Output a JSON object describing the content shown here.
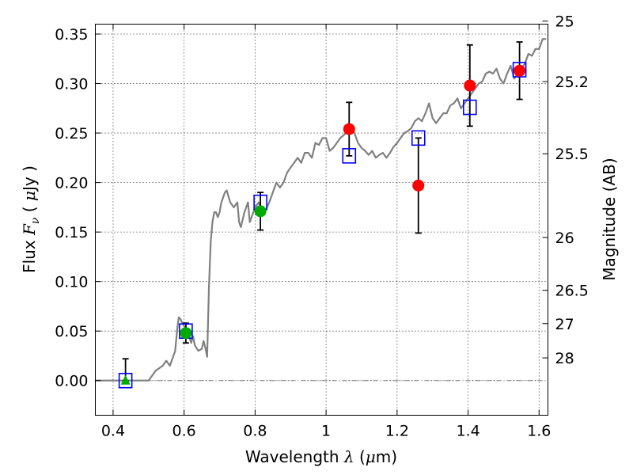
{
  "chart_data": {
    "type": "scatter",
    "xlabel": {
      "text": "Wavelength",
      "symbol": "λ",
      "unit_open": " (",
      "unit_mu": "μ",
      "unit_rest": "m)"
    },
    "ylabel": {
      "text": "Flux",
      "symbol": "F",
      "subscript": "ν",
      "unit_open": "( ",
      "unit_mu": "μ",
      "unit_rest": "Jy )"
    },
    "y2label": "Magnitude (AB)",
    "xlim": [
      0.35,
      1.625
    ],
    "ylim": [
      -0.035,
      0.36
    ],
    "grid": true,
    "x_ticks": [
      {
        "value": 0.4,
        "label": "0.4"
      },
      {
        "value": 0.6,
        "label": "0.6"
      },
      {
        "value": 0.8,
        "label": "0.8"
      },
      {
        "value": 1.0,
        "label": "1"
      },
      {
        "value": 1.2,
        "label": "1.2"
      },
      {
        "value": 1.4,
        "label": "1.4"
      },
      {
        "value": 1.6,
        "label": "1.6"
      }
    ],
    "y_ticks": [
      {
        "value": 0.0,
        "label": "0.00"
      },
      {
        "value": 0.05,
        "label": "0.05"
      },
      {
        "value": 0.1,
        "label": "0.10"
      },
      {
        "value": 0.15,
        "label": "0.15"
      },
      {
        "value": 0.2,
        "label": "0.20"
      },
      {
        "value": 0.25,
        "label": "0.25"
      },
      {
        "value": 0.3,
        "label": "0.30"
      },
      {
        "value": 0.35,
        "label": "0.35"
      }
    ],
    "mag_ticks": [
      {
        "label": "25",
        "mag": 25.0
      },
      {
        "label": "25.2",
        "mag": 25.2
      },
      {
        "label": "25.5",
        "mag": 25.5
      },
      {
        "label": "26",
        "mag": 26.0
      },
      {
        "label": "26.5",
        "mag": 26.5
      },
      {
        "label": "27",
        "mag": 27.0
      },
      {
        "label": "28",
        "mag": 28.0
      }
    ],
    "colors": {
      "model": "#808080",
      "model_photometry": "#0000ff",
      "detection_hst": "#ff0000",
      "detection_optical": "#00aa00",
      "errorbar": "#000000",
      "zero_line": "#808080"
    },
    "series": [
      {
        "role": "model_spectrum",
        "style": "line",
        "x": [
          0.35,
          0.4,
          0.45,
          0.5,
          0.52,
          0.54,
          0.55,
          0.56,
          0.57,
          0.575,
          0.58,
          0.585,
          0.59,
          0.595,
          0.6,
          0.61,
          0.62,
          0.625,
          0.63,
          0.64,
          0.65,
          0.655,
          0.66,
          0.665,
          0.67,
          0.675,
          0.68,
          0.685,
          0.69,
          0.695,
          0.7,
          0.705,
          0.71,
          0.715,
          0.72,
          0.73,
          0.74,
          0.75,
          0.755,
          0.76,
          0.77,
          0.78,
          0.785,
          0.79,
          0.8,
          0.81,
          0.82,
          0.83,
          0.84,
          0.85,
          0.86,
          0.87,
          0.88,
          0.89,
          0.9,
          0.91,
          0.92,
          0.93,
          0.94,
          0.95,
          0.96,
          0.97,
          0.98,
          0.99,
          1.0,
          1.01,
          1.02,
          1.03,
          1.04,
          1.05,
          1.06,
          1.07,
          1.08,
          1.09,
          1.1,
          1.11,
          1.12,
          1.13,
          1.14,
          1.15,
          1.16,
          1.17,
          1.18,
          1.19,
          1.2,
          1.21,
          1.22,
          1.23,
          1.24,
          1.25,
          1.26,
          1.27,
          1.28,
          1.29,
          1.3,
          1.31,
          1.32,
          1.33,
          1.34,
          1.35,
          1.36,
          1.37,
          1.38,
          1.39,
          1.4,
          1.41,
          1.42,
          1.43,
          1.44,
          1.45,
          1.46,
          1.47,
          1.48,
          1.49,
          1.5,
          1.51,
          1.52,
          1.53,
          1.54,
          1.55,
          1.56,
          1.57,
          1.58,
          1.59,
          1.6,
          1.61,
          1.62
        ],
        "y": [
          0.0,
          0.0,
          0.0,
          0.0,
          0.01,
          0.015,
          0.02,
          0.015,
          0.025,
          0.03,
          0.05,
          0.064,
          0.062,
          0.058,
          0.055,
          0.05,
          0.038,
          0.045,
          0.036,
          0.03,
          0.032,
          0.04,
          0.033,
          0.024,
          0.095,
          0.14,
          0.16,
          0.17,
          0.17,
          0.165,
          0.17,
          0.18,
          0.185,
          0.19,
          0.192,
          0.18,
          0.175,
          0.18,
          0.16,
          0.155,
          0.17,
          0.18,
          0.16,
          0.165,
          0.175,
          0.18,
          0.17,
          0.172,
          0.18,
          0.19,
          0.2,
          0.195,
          0.2,
          0.21,
          0.215,
          0.22,
          0.225,
          0.22,
          0.23,
          0.23,
          0.225,
          0.24,
          0.238,
          0.245,
          0.245,
          0.232,
          0.235,
          0.24,
          0.245,
          0.248,
          0.252,
          0.255,
          0.25,
          0.24,
          0.235,
          0.232,
          0.228,
          0.232,
          0.225,
          0.228,
          0.23,
          0.225,
          0.23,
          0.236,
          0.24,
          0.245,
          0.25,
          0.252,
          0.255,
          0.262,
          0.265,
          0.262,
          0.27,
          0.28,
          0.265,
          0.26,
          0.265,
          0.27,
          0.27,
          0.278,
          0.28,
          0.285,
          0.275,
          0.28,
          0.285,
          0.29,
          0.295,
          0.3,
          0.302,
          0.31,
          0.312,
          0.31,
          0.315,
          0.305,
          0.3,
          0.31,
          0.318,
          0.305,
          0.31,
          0.315,
          0.32,
          0.33,
          0.328,
          0.335,
          0.335,
          0.345,
          0.345
        ]
      },
      {
        "role": "model_photometry",
        "style": "open_square",
        "x": [
          0.435,
          0.605,
          0.815,
          1.065,
          1.26,
          1.405,
          1.545
        ],
        "y": [
          0.0,
          0.05,
          0.18,
          0.227,
          0.245,
          0.276,
          0.314
        ]
      },
      {
        "role": "detection_hst",
        "style": "filled_circle",
        "x": [
          1.065,
          1.26,
          1.405,
          1.545
        ],
        "y": [
          0.254,
          0.197,
          0.298,
          0.313
        ],
        "yerr": [
          0.027,
          0.048,
          0.041,
          0.029
        ]
      },
      {
        "role": "detection_optical",
        "style": "filled_circle",
        "x": [
          0.605,
          0.815
        ],
        "y": [
          0.048,
          0.171
        ],
        "yerr": [
          0.01,
          0.019
        ]
      },
      {
        "role": "limit",
        "style": "filled_triangle",
        "x": [
          0.435
        ],
        "y": [
          0.0
        ],
        "yerr_upper": [
          0.022
        ]
      }
    ]
  }
}
